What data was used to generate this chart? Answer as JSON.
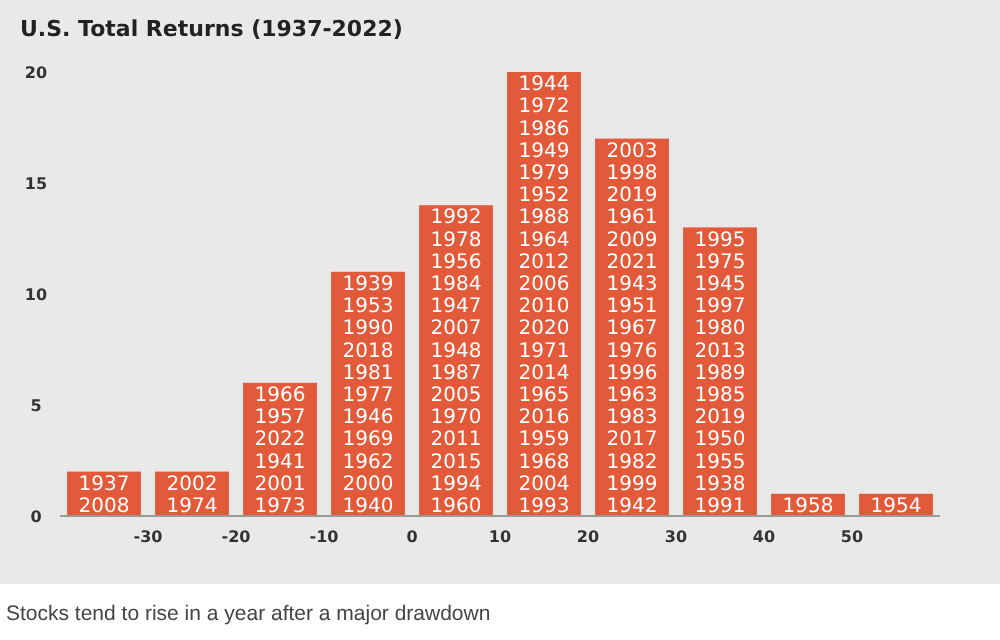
{
  "chart_data": {
    "type": "histogram",
    "title": "U.S. Total Returns (1937-2022)",
    "bins": [
      -40,
      -30,
      -20,
      -10,
      0,
      10,
      20,
      30,
      40,
      50,
      60
    ],
    "values": [
      2,
      2,
      6,
      11,
      14,
      20,
      17,
      13,
      1,
      1
    ],
    "color": "#e35a3a",
    "xlim": [
      -40,
      60
    ],
    "ylim": [
      0,
      20
    ],
    "xticks": [
      -30,
      -20,
      -10,
      0,
      10,
      20,
      30,
      40,
      50
    ],
    "yticks": [
      0,
      5,
      10,
      15,
      20
    ],
    "grid": false,
    "annotations": [
      "1937",
      "2008",
      "2002",
      "1974",
      "1966",
      "1957",
      "2022",
      "1941",
      "2001",
      "1973",
      "1939",
      "1953",
      "1990",
      "2018",
      "1981",
      "1977",
      "1946",
      "1969",
      "1962",
      "2000",
      "1940",
      "1992",
      "1978",
      "1956",
      "1984",
      "1947",
      "2007",
      "1948",
      "1987",
      "2005",
      "1970",
      "2011",
      "2015",
      "1994",
      "1960",
      "1944",
      "1972",
      "1986",
      "1949",
      "1979",
      "1952",
      "1988",
      "1964",
      "2012",
      "2006",
      "2010",
      "2020",
      "1971",
      "2014",
      "1965",
      "2016",
      "1959",
      "1968",
      "2004",
      "1993",
      "2003",
      "1998",
      "2019",
      "1961",
      "2009",
      "2021",
      "1943",
      "1951",
      "1967",
      "1976",
      "1996",
      "1963",
      "1983",
      "2017",
      "1982",
      "1999",
      "1942",
      "1995",
      "1975",
      "1945",
      "1997",
      "1980",
      "2013",
      "1989",
      "1985",
      "2019",
      "1950",
      "1955",
      "1938",
      "1991",
      "1958",
      "1954",
      "Stocks tend to rise in a year after a major drawdown"
    ]
  }
}
